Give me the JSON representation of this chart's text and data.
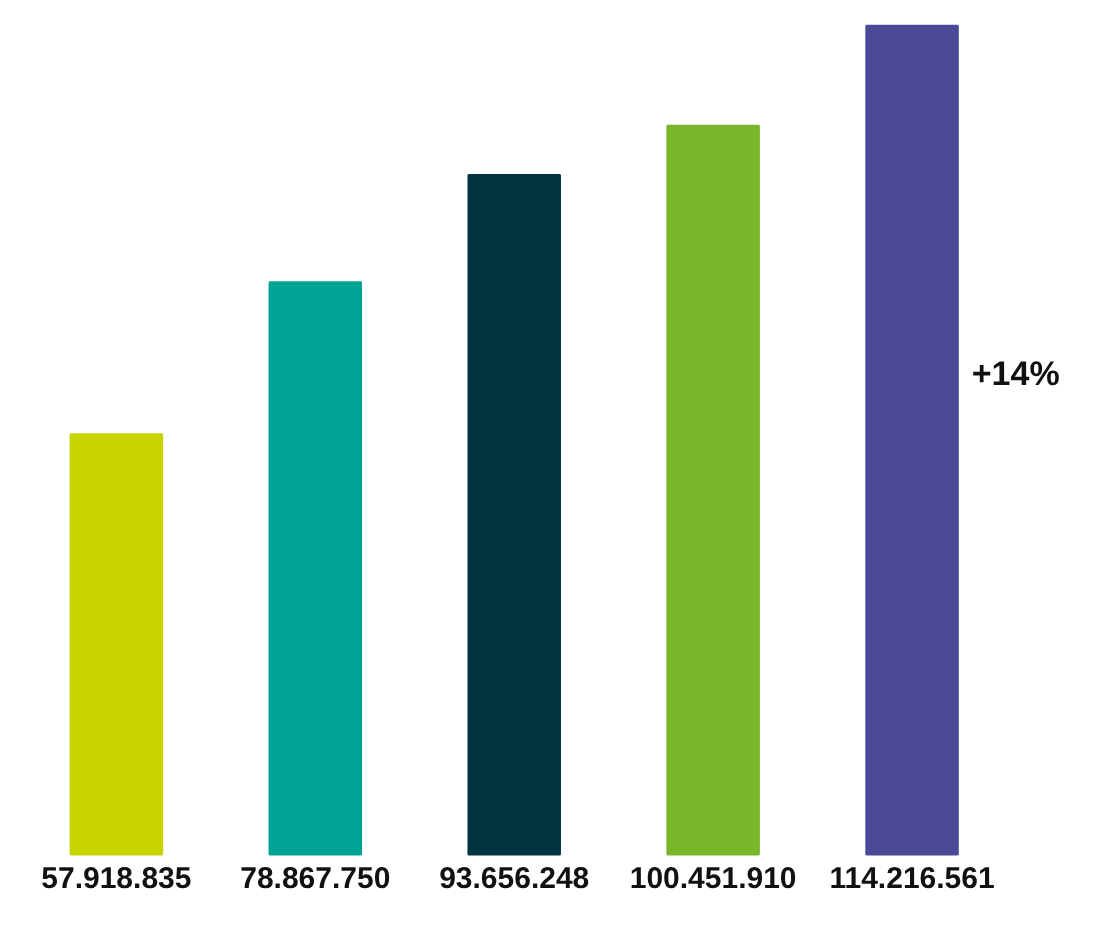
{
  "chart_data": {
    "type": "bar",
    "categories": [
      null,
      null,
      null,
      null,
      null
    ],
    "values": [
      57918835,
      78867750,
      93656248,
      100451910,
      114216561
    ],
    "colors": [
      "#c8d400",
      "#00a496",
      "#003440",
      "#78b72a",
      "#4a4897"
    ],
    "value_labels": [
      "57.918.835",
      "78.867.750",
      "93.656.248",
      "100.451.910",
      "114.216.561"
    ],
    "annotations": [
      "+14%"
    ]
  }
}
